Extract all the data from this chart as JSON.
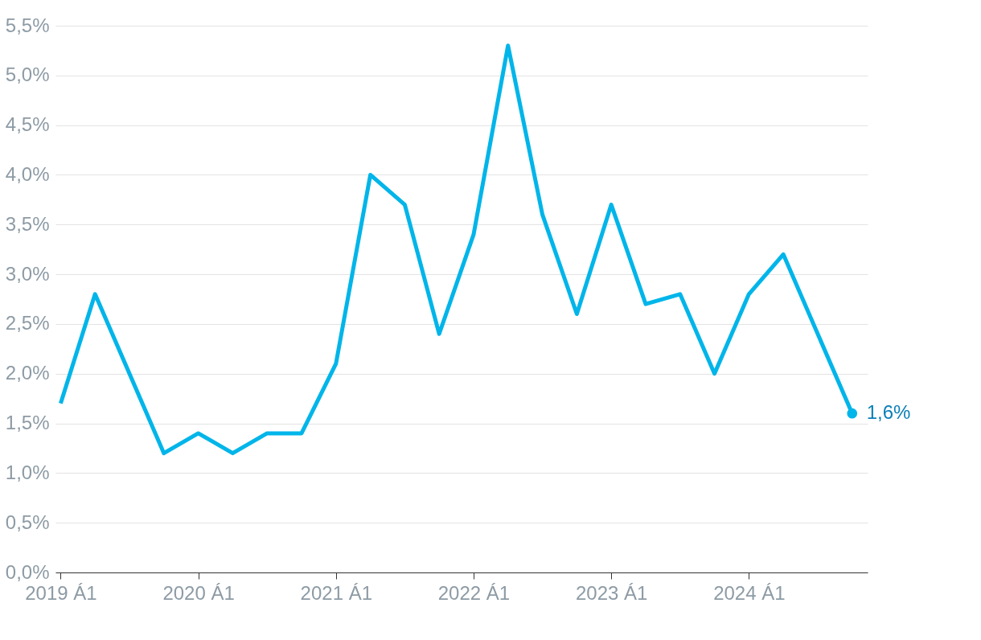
{
  "chart_data": {
    "type": "line",
    "categories": [
      "2019 Á1",
      null,
      null,
      null,
      "2020 Á1",
      null,
      null,
      null,
      "2021 Á1",
      null,
      null,
      null,
      "2022 Á1",
      null,
      null,
      null,
      "2023 Á1",
      null,
      null,
      null,
      "2024 Á1",
      null,
      null,
      null
    ],
    "series": [
      {
        "color": "#00b5e9",
        "values": [
          1.7,
          2.8,
          2.0,
          1.2,
          1.4,
          1.2,
          1.4,
          1.4,
          2.1,
          4.0,
          3.7,
          2.4,
          3.4,
          5.3,
          3.6,
          2.6,
          3.7,
          2.7,
          2.8,
          2.0,
          2.8,
          3.2,
          2.4,
          1.6
        ],
        "value_labels": [
          null,
          null,
          null,
          null,
          null,
          null,
          null,
          null,
          null,
          null,
          null,
          null,
          null,
          null,
          null,
          null,
          null,
          null,
          null,
          null,
          null,
          null,
          null,
          "1,6%"
        ]
      }
    ],
    "ylim": [
      0,
      5.5
    ],
    "yticks": [
      {
        "value": 0,
        "label": "0,0%"
      },
      {
        "value": 0.5,
        "label": "0,5%"
      },
      {
        "value": 1,
        "label": "1,0%"
      },
      {
        "value": 1.5,
        "label": "1,5%"
      },
      {
        "value": 2,
        "label": "2,0%"
      },
      {
        "value": 2.5,
        "label": "2,5%"
      },
      {
        "value": 3,
        "label": "3,0%"
      },
      {
        "value": 3.5,
        "label": "3,5%"
      },
      {
        "value": 4,
        "label": "4,0%"
      },
      {
        "value": 4.5,
        "label": "4,5%"
      },
      {
        "value": 5,
        "label": "5,0%"
      },
      {
        "value": 5.5,
        "label": "5,5%"
      }
    ],
    "grid": "y",
    "marker": "none",
    "line_style": "solid"
  }
}
